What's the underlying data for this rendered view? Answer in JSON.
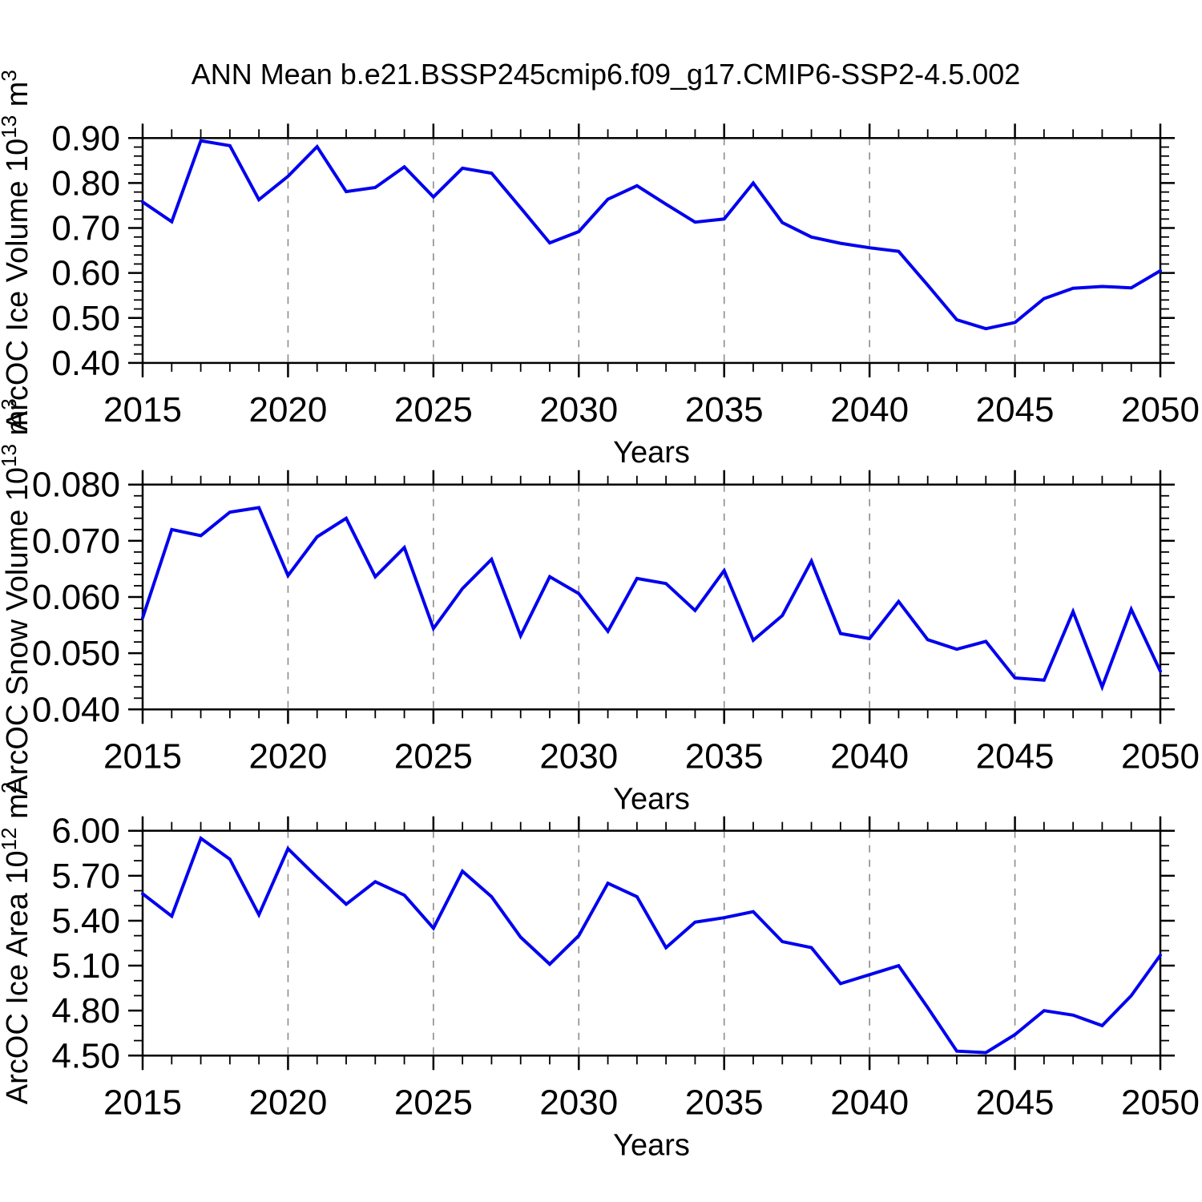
{
  "title": "ANN Mean b.e21.BSSP245cmip6.f09_g17.CMIP6-SSP2-4.5.002",
  "xlabel": "Years",
  "colors": {
    "line": "#0000EE",
    "grid": "#8C8C8C",
    "frame": "#000000",
    "background": "#FFFFFF"
  },
  "x_axis": {
    "min": 2015,
    "max": 2050,
    "major_tick_labels": [
      "2015",
      "2020",
      "2025",
      "2030",
      "2035",
      "2040",
      "2045",
      "2050"
    ],
    "major_step": 5,
    "minor_step": 1,
    "grid_years": [
      2020,
      2025,
      2030,
      2035,
      2040,
      2045
    ]
  },
  "chart_data": [
    {
      "type": "line",
      "id": "ice-volume",
      "ylabel_plain": "ArcOC Ice Volume 10^13 m^3",
      "ylabel_segments": [
        [
          "ArcOC Ice Volume 10",
          false
        ],
        [
          "13",
          true
        ],
        [
          " m",
          false
        ],
        [
          "3",
          true
        ]
      ],
      "xlabel": "Years",
      "ymin": 0.4,
      "ymax": 0.9,
      "ytick_step": 0.1,
      "yminor_step": 0.02,
      "ytick_decimals": 2,
      "ytick_labels": [
        "0.40",
        "0.50",
        "0.60",
        "0.70",
        "0.80",
        "0.90"
      ],
      "x": [
        2015,
        2016,
        2017,
        2018,
        2019,
        2020,
        2021,
        2022,
        2023,
        2024,
        2025,
        2026,
        2027,
        2028,
        2029,
        2030,
        2031,
        2032,
        2033,
        2034,
        2035,
        2036,
        2037,
        2038,
        2039,
        2040,
        2041,
        2042,
        2043,
        2044,
        2045,
        2046,
        2047,
        2048,
        2049,
        2050
      ],
      "values": [
        0.758,
        0.714,
        0.894,
        0.883,
        0.763,
        0.815,
        0.881,
        0.781,
        0.79,
        0.836,
        0.769,
        0.833,
        0.822,
        0.745,
        0.667,
        0.692,
        0.764,
        0.794,
        0.753,
        0.713,
        0.72,
        0.8,
        0.712,
        0.68,
        0.666,
        0.656,
        0.648,
        0.573,
        0.496,
        0.476,
        0.49,
        0.543,
        0.566,
        0.57,
        0.567,
        0.605
      ]
    },
    {
      "type": "line",
      "id": "snow-volume",
      "ylabel_plain": "ArcOC Snow Volume 10^13 m^3",
      "ylabel_segments": [
        [
          "ArcOC Snow Volume 10",
          false
        ],
        [
          "13",
          true
        ],
        [
          " m",
          false
        ],
        [
          "3",
          true
        ]
      ],
      "xlabel": "Years",
      "ymin": 0.04,
      "ymax": 0.08,
      "ytick_step": 0.01,
      "yminor_step": 0.002,
      "ytick_decimals": 3,
      "ytick_labels": [
        "0.040",
        "0.050",
        "0.060",
        "0.070",
        "0.080"
      ],
      "x": [
        2015,
        2016,
        2017,
        2018,
        2019,
        2020,
        2021,
        2022,
        2023,
        2024,
        2025,
        2026,
        2027,
        2028,
        2029,
        2030,
        2031,
        2032,
        2033,
        2034,
        2035,
        2036,
        2037,
        2038,
        2039,
        2040,
        2041,
        2042,
        2043,
        2044,
        2045,
        2046,
        2047,
        2048,
        2049,
        2050
      ],
      "values": [
        0.0563,
        0.072,
        0.0709,
        0.0751,
        0.0759,
        0.0638,
        0.0707,
        0.074,
        0.0636,
        0.0688,
        0.0544,
        0.0615,
        0.0667,
        0.0531,
        0.0636,
        0.0606,
        0.0539,
        0.0633,
        0.0624,
        0.0576,
        0.0647,
        0.0523,
        0.0567,
        0.0664,
        0.0535,
        0.0526,
        0.0592,
        0.0524,
        0.0507,
        0.0521,
        0.0456,
        0.0452,
        0.0574,
        0.044,
        0.0578,
        0.0468
      ]
    },
    {
      "type": "line",
      "id": "ice-area",
      "ylabel_plain": "ArcOC Ice Area 10^12 m^2",
      "ylabel_segments": [
        [
          "ArcOC Ice Area 10",
          false
        ],
        [
          "12",
          true
        ],
        [
          " m",
          false
        ],
        [
          "2",
          true
        ]
      ],
      "xlabel": "Years",
      "ymin": 4.5,
      "ymax": 6.0,
      "ytick_step": 0.3,
      "yminor_step": 0.1,
      "ytick_decimals": 2,
      "ytick_labels": [
        "4.50",
        "4.80",
        "5.10",
        "5.40",
        "5.70",
        "6.00"
      ],
      "x": [
        2015,
        2016,
        2017,
        2018,
        2019,
        2020,
        2021,
        2022,
        2023,
        2024,
        2025,
        2026,
        2027,
        2028,
        2029,
        2030,
        2031,
        2032,
        2033,
        2034,
        2035,
        2036,
        2037,
        2038,
        2039,
        2040,
        2041,
        2042,
        2043,
        2044,
        2045,
        2046,
        2047,
        2048,
        2049,
        2050
      ],
      "values": [
        5.58,
        5.43,
        5.95,
        5.81,
        5.44,
        5.88,
        5.69,
        5.51,
        5.66,
        5.57,
        5.35,
        5.73,
        5.56,
        5.29,
        5.11,
        5.3,
        5.65,
        5.56,
        5.22,
        5.39,
        5.42,
        5.46,
        5.26,
        5.22,
        4.98,
        5.04,
        5.1,
        4.82,
        4.53,
        4.52,
        4.64,
        4.8,
        4.77,
        4.7,
        4.9,
        5.17
      ]
    }
  ]
}
